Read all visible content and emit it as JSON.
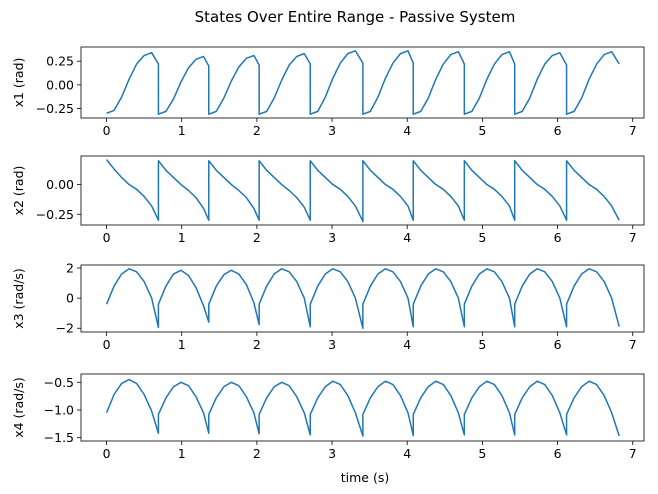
{
  "figure": {
    "title": "States Over Entire Range - Passive System",
    "xlabel": "time (s)",
    "line_color": "#1f77b4"
  },
  "chart_data": [
    {
      "type": "line",
      "ylabel": "x1 (rad)",
      "xlim": [
        -0.34,
        7.15
      ],
      "ylim": [
        -0.35,
        0.4
      ],
      "xticks": [
        0,
        1,
        2,
        3,
        4,
        5,
        6,
        7
      ],
      "yticks": [
        -0.25,
        0.0,
        0.25
      ],
      "ytick_labels": [
        "−0.25",
        "0.00",
        "0.25"
      ],
      "series": [
        {
          "x": [
            0.0,
            0.1,
            0.2,
            0.3,
            0.4,
            0.5,
            0.6,
            0.69,
            0.69,
            0.79,
            0.89,
            0.99,
            1.09,
            1.19,
            1.29,
            1.36,
            1.36,
            1.46,
            1.56,
            1.66,
            1.76,
            1.86,
            1.96,
            2.03,
            2.03,
            2.13,
            2.23,
            2.33,
            2.43,
            2.53,
            2.63,
            2.71,
            2.71,
            2.81,
            2.91,
            3.01,
            3.11,
            3.21,
            3.31,
            3.41,
            3.41,
            3.51,
            3.61,
            3.71,
            3.81,
            3.91,
            4.01,
            4.08,
            4.08,
            4.18,
            4.28,
            4.38,
            4.48,
            4.58,
            4.68,
            4.76,
            4.76,
            4.86,
            4.96,
            5.06,
            5.16,
            5.26,
            5.36,
            5.43,
            5.43,
            5.53,
            5.63,
            5.73,
            5.83,
            5.93,
            6.03,
            6.12,
            6.12,
            6.22,
            6.32,
            6.42,
            6.52,
            6.62,
            6.72,
            6.82
          ],
          "y": [
            -0.3,
            -0.27,
            -0.13,
            0.06,
            0.22,
            0.31,
            0.34,
            0.22,
            -0.31,
            -0.28,
            -0.15,
            0.03,
            0.18,
            0.27,
            0.3,
            0.2,
            -0.31,
            -0.28,
            -0.14,
            0.04,
            0.19,
            0.28,
            0.31,
            0.21,
            -0.31,
            -0.28,
            -0.14,
            0.05,
            0.21,
            0.3,
            0.33,
            0.22,
            -0.31,
            -0.28,
            -0.13,
            0.07,
            0.23,
            0.33,
            0.36,
            0.23,
            -0.31,
            -0.28,
            -0.13,
            0.07,
            0.23,
            0.33,
            0.36,
            0.23,
            -0.31,
            -0.28,
            -0.14,
            0.06,
            0.22,
            0.32,
            0.35,
            0.22,
            -0.31,
            -0.28,
            -0.14,
            0.06,
            0.22,
            0.32,
            0.35,
            0.22,
            -0.31,
            -0.28,
            -0.14,
            0.06,
            0.22,
            0.31,
            0.34,
            0.21,
            -0.31,
            -0.28,
            -0.14,
            0.06,
            0.22,
            0.32,
            0.35,
            0.22
          ]
        }
      ]
    },
    {
      "type": "line",
      "ylabel": "x2 (rad)",
      "xlim": [
        -0.34,
        7.15
      ],
      "ylim": [
        -0.34,
        0.24
      ],
      "xticks": [
        0,
        1,
        2,
        3,
        4,
        5,
        6,
        7
      ],
      "yticks": [
        -0.25,
        0.0
      ],
      "ytick_labels": [
        "−0.25",
        "0.00"
      ],
      "series": [
        {
          "x": [
            0.0,
            0.1,
            0.2,
            0.3,
            0.4,
            0.5,
            0.6,
            0.69,
            0.69,
            0.79,
            0.89,
            0.99,
            1.09,
            1.19,
            1.29,
            1.36,
            1.36,
            1.46,
            1.56,
            1.66,
            1.76,
            1.86,
            1.96,
            2.03,
            2.03,
            2.13,
            2.23,
            2.33,
            2.43,
            2.53,
            2.63,
            2.71,
            2.71,
            2.81,
            2.91,
            3.01,
            3.11,
            3.21,
            3.31,
            3.41,
            3.41,
            3.51,
            3.61,
            3.71,
            3.81,
            3.91,
            4.01,
            4.08,
            4.08,
            4.18,
            4.28,
            4.38,
            4.48,
            4.58,
            4.68,
            4.76,
            4.76,
            4.86,
            4.96,
            5.06,
            5.16,
            5.26,
            5.36,
            5.43,
            5.43,
            5.53,
            5.63,
            5.73,
            5.83,
            5.93,
            6.03,
            6.12,
            6.12,
            6.22,
            6.32,
            6.42,
            6.52,
            6.62,
            6.72,
            6.82
          ],
          "y": [
            0.21,
            0.13,
            0.06,
            0.0,
            -0.04,
            -0.1,
            -0.18,
            -0.3,
            0.2,
            0.12,
            0.06,
            0.0,
            -0.05,
            -0.11,
            -0.2,
            -0.3,
            0.2,
            0.12,
            0.06,
            0.0,
            -0.05,
            -0.11,
            -0.2,
            -0.3,
            0.2,
            0.12,
            0.06,
            0.0,
            -0.05,
            -0.11,
            -0.19,
            -0.3,
            0.2,
            0.12,
            0.06,
            0.0,
            -0.04,
            -0.1,
            -0.18,
            -0.31,
            0.2,
            0.12,
            0.06,
            0.0,
            -0.04,
            -0.1,
            -0.18,
            -0.3,
            0.2,
            0.12,
            0.06,
            0.0,
            -0.04,
            -0.1,
            -0.18,
            -0.3,
            0.2,
            0.12,
            0.06,
            0.0,
            -0.04,
            -0.1,
            -0.18,
            -0.3,
            0.2,
            0.12,
            0.06,
            0.0,
            -0.04,
            -0.1,
            -0.18,
            -0.3,
            0.2,
            0.12,
            0.06,
            0.0,
            -0.04,
            -0.1,
            -0.18,
            -0.3
          ]
        }
      ]
    },
    {
      "type": "line",
      "ylabel": "x3 (rad/s)",
      "xlim": [
        -0.34,
        7.15
      ],
      "ylim": [
        -2.25,
        2.2
      ],
      "xticks": [
        0,
        1,
        2,
        3,
        4,
        5,
        6,
        7
      ],
      "yticks": [
        -2,
        0,
        2
      ],
      "ytick_labels": [
        "−2",
        "0",
        "2"
      ],
      "series": [
        {
          "x": [
            0.0,
            0.1,
            0.2,
            0.3,
            0.4,
            0.5,
            0.6,
            0.69,
            0.69,
            0.79,
            0.89,
            0.99,
            1.09,
            1.19,
            1.29,
            1.36,
            1.36,
            1.46,
            1.56,
            1.66,
            1.76,
            1.86,
            1.96,
            2.03,
            2.03,
            2.13,
            2.23,
            2.33,
            2.43,
            2.53,
            2.63,
            2.71,
            2.71,
            2.81,
            2.91,
            3.01,
            3.11,
            3.21,
            3.31,
            3.41,
            3.41,
            3.51,
            3.61,
            3.71,
            3.81,
            3.91,
            4.01,
            4.08,
            4.08,
            4.18,
            4.28,
            4.38,
            4.48,
            4.58,
            4.68,
            4.76,
            4.76,
            4.86,
            4.96,
            5.06,
            5.16,
            5.26,
            5.36,
            5.43,
            5.43,
            5.53,
            5.63,
            5.73,
            5.83,
            5.93,
            6.03,
            6.12,
            6.12,
            6.22,
            6.32,
            6.42,
            6.52,
            6.62,
            6.72,
            6.82
          ],
          "y": [
            -0.4,
            0.8,
            1.6,
            1.95,
            1.75,
            1.1,
            0.0,
            -1.95,
            -0.4,
            0.8,
            1.6,
            1.85,
            1.5,
            0.7,
            -0.5,
            -1.6,
            -0.4,
            0.8,
            1.55,
            1.85,
            1.6,
            0.9,
            -0.3,
            -1.75,
            -0.4,
            0.8,
            1.6,
            1.95,
            1.75,
            1.1,
            0.0,
            -1.9,
            -0.4,
            0.8,
            1.6,
            1.95,
            1.75,
            1.1,
            0.0,
            -2.0,
            -0.4,
            0.8,
            1.6,
            1.95,
            1.75,
            1.1,
            0.0,
            -1.9,
            -0.4,
            0.8,
            1.6,
            1.95,
            1.75,
            1.1,
            0.0,
            -1.9,
            -0.4,
            0.8,
            1.6,
            1.95,
            1.75,
            1.1,
            0.0,
            -1.9,
            -0.4,
            0.8,
            1.6,
            1.95,
            1.75,
            1.1,
            0.0,
            -1.9,
            -0.4,
            0.8,
            1.6,
            1.95,
            1.75,
            1.1,
            0.0,
            -1.9
          ]
        }
      ]
    },
    {
      "type": "line",
      "ylabel": "x4 (rad/s)",
      "xlim": [
        -0.34,
        7.15
      ],
      "ylim": [
        -1.56,
        -0.35
      ],
      "xticks": [
        0,
        1,
        2,
        3,
        4,
        5,
        6,
        7
      ],
      "yticks": [
        -1.5,
        -1.0,
        -0.5
      ],
      "ytick_labels": [
        "−1.5",
        "−1.0",
        "−0.5"
      ],
      "series": [
        {
          "x": [
            0.0,
            0.1,
            0.2,
            0.3,
            0.4,
            0.5,
            0.6,
            0.69,
            0.69,
            0.79,
            0.89,
            0.99,
            1.09,
            1.19,
            1.29,
            1.36,
            1.36,
            1.46,
            1.56,
            1.66,
            1.76,
            1.86,
            1.96,
            2.03,
            2.03,
            2.13,
            2.23,
            2.33,
            2.43,
            2.53,
            2.63,
            2.71,
            2.71,
            2.81,
            2.91,
            3.01,
            3.11,
            3.21,
            3.31,
            3.41,
            3.41,
            3.51,
            3.61,
            3.71,
            3.81,
            3.91,
            4.01,
            4.08,
            4.08,
            4.18,
            4.28,
            4.38,
            4.48,
            4.58,
            4.68,
            4.76,
            4.76,
            4.86,
            4.96,
            5.06,
            5.16,
            5.26,
            5.36,
            5.43,
            5.43,
            5.53,
            5.63,
            5.73,
            5.83,
            5.93,
            6.03,
            6.12,
            6.12,
            6.22,
            6.32,
            6.42,
            6.52,
            6.62,
            6.72,
            6.82
          ],
          "y": [
            -1.05,
            -0.72,
            -0.52,
            -0.45,
            -0.52,
            -0.72,
            -1.02,
            -1.42,
            -1.08,
            -0.78,
            -0.58,
            -0.5,
            -0.56,
            -0.76,
            -1.05,
            -1.42,
            -1.08,
            -0.78,
            -0.58,
            -0.5,
            -0.56,
            -0.76,
            -1.05,
            -1.43,
            -1.08,
            -0.78,
            -0.58,
            -0.5,
            -0.56,
            -0.76,
            -1.05,
            -1.45,
            -1.08,
            -0.78,
            -0.58,
            -0.48,
            -0.54,
            -0.74,
            -1.05,
            -1.47,
            -1.08,
            -0.78,
            -0.58,
            -0.48,
            -0.54,
            -0.74,
            -1.05,
            -1.46,
            -1.08,
            -0.78,
            -0.58,
            -0.48,
            -0.54,
            -0.74,
            -1.05,
            -1.45,
            -1.08,
            -0.78,
            -0.58,
            -0.48,
            -0.54,
            -0.74,
            -1.05,
            -1.45,
            -1.08,
            -0.78,
            -0.58,
            -0.48,
            -0.54,
            -0.74,
            -1.05,
            -1.45,
            -1.08,
            -0.78,
            -0.58,
            -0.48,
            -0.54,
            -0.74,
            -1.05,
            -1.47
          ]
        }
      ]
    }
  ]
}
